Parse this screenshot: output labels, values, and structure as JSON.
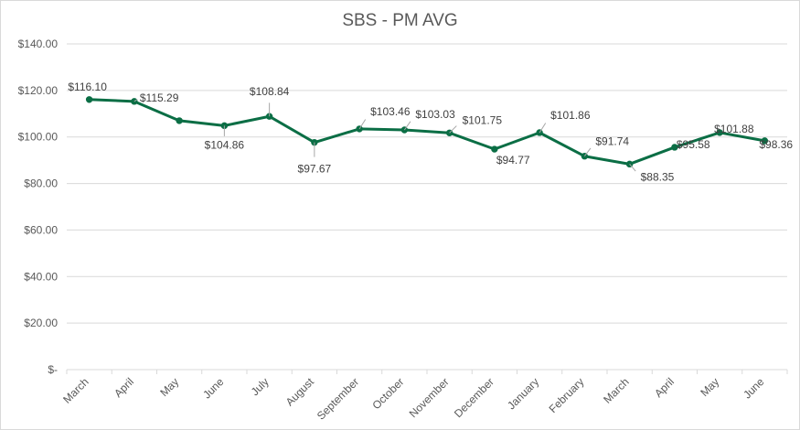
{
  "chart_data": {
    "type": "line",
    "title": "SBS - PM AVG",
    "xlabel": "",
    "ylabel": "",
    "categories": [
      "March",
      "April",
      "May",
      "June",
      "July",
      "August",
      "September",
      "October",
      "November",
      "December",
      "January",
      "February",
      "March",
      "April",
      "May",
      "June"
    ],
    "series": [
      {
        "color": "#0b6e45",
        "values": [
          116.1,
          115.29,
          107.0,
          104.86,
          108.84,
          97.67,
          103.46,
          103.03,
          101.75,
          94.77,
          101.86,
          91.74,
          88.35,
          95.58,
          101.88,
          98.36
        ],
        "labels": [
          "$116.10",
          "$115.29",
          "",
          "$104.86",
          "$108.84",
          "$97.67",
          "$103.46",
          "$103.03",
          "$101.75",
          "$94.77",
          "$101.86",
          "$91.74",
          "$88.35",
          "$95.58",
          "$101.88",
          "$98.36"
        ]
      }
    ],
    "ylim": [
      0,
      140
    ],
    "yticks": [
      0,
      20,
      40,
      60,
      80,
      100,
      120,
      140
    ],
    "ytick_labels": [
      "$-",
      "$20.00",
      "$40.00",
      "$60.00",
      "$80.00",
      "$100.00",
      "$120.00",
      "$140.00"
    ],
    "grid": true,
    "legend": "none"
  }
}
